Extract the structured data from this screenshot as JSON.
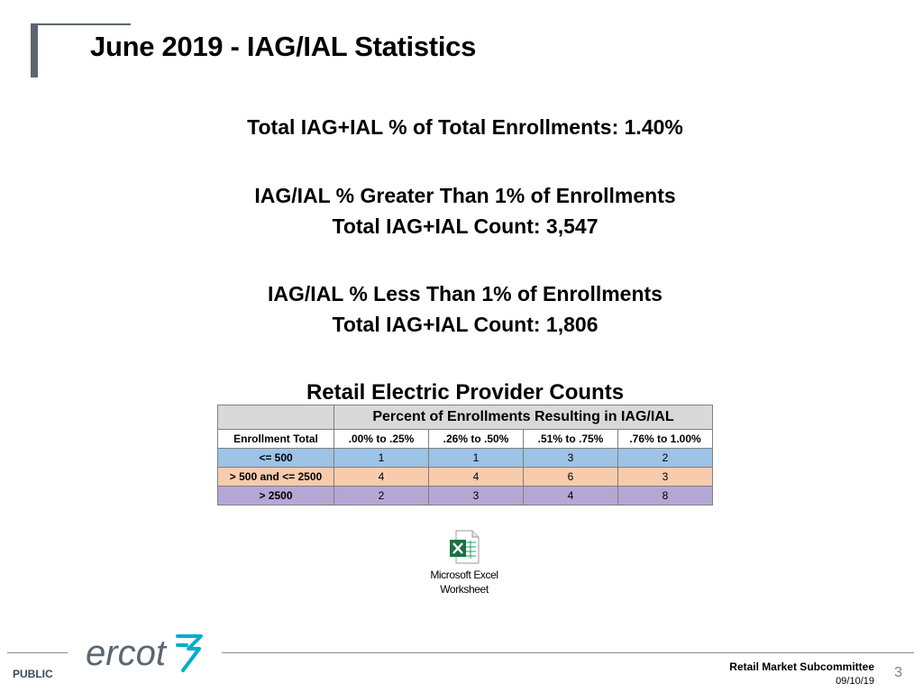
{
  "title": "June 2019 - IAG/IAL Statistics",
  "summary": {
    "total_pct": "Total IAG+IAL % of Total Enrollments: 1.40%",
    "greater_heading": "IAG/IAL % Greater Than 1% of Enrollments",
    "greater_count": "Total IAG+IAL Count: 3,547",
    "less_heading": "IAG/IAL % Less Than 1% of Enrollments",
    "less_count": "Total IAG+IAL Count: 1,806"
  },
  "table": {
    "heading": "Retail Electric Provider Counts",
    "span_header": "Percent of Enrollments Resulting in IAG/IAL",
    "columns": [
      "Enrollment Total",
      ".00% to .25%",
      ".26% to .50%",
      ".51% to .75%",
      ".76% to 1.00%"
    ],
    "rows": [
      {
        "label": "<= 500",
        "values": [
          "1",
          "1",
          "3",
          "2"
        ],
        "color": "#9dc3e6"
      },
      {
        "label": "> 500 and <= 2500",
        "values": [
          "4",
          "4",
          "6",
          "3"
        ],
        "color": "#f8cbad"
      },
      {
        "label": "> 2500",
        "values": [
          "2",
          "3",
          "4",
          "8"
        ],
        "color": "#b4a7d6"
      }
    ]
  },
  "attachment": {
    "icon": "excel-file-icon",
    "label_line1": "Microsoft Excel",
    "label_line2": "Worksheet"
  },
  "footer": {
    "logo_text": "ercot",
    "classification": "PUBLIC",
    "committee": "Retail Market Subcommittee",
    "date": "09/10/19",
    "page_number": "3"
  },
  "colors": {
    "accent_gray": "#5b6770",
    "logo_teal": "#00aec7",
    "logo_gray": "#5b6770"
  }
}
